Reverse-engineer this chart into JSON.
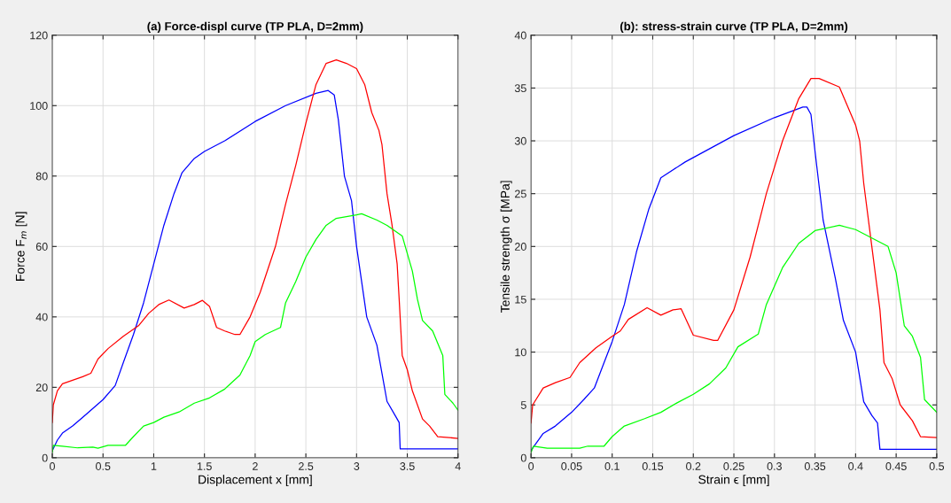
{
  "chart_data": [
    {
      "type": "line",
      "title": "(a) Force-displ curve (TP PLA, D=2mm)",
      "xlabel": "Displacement x [mm]",
      "ylabel": "Force F$_{m}$ [N]",
      "xlim": [
        0,
        4
      ],
      "ylim": [
        0,
        120
      ],
      "xticks": [
        0,
        0.5,
        1,
        1.5,
        2,
        2.5,
        3,
        3.5,
        4
      ],
      "yticks": [
        0,
        20,
        40,
        60,
        80,
        100,
        120
      ],
      "grid": true,
      "series": [
        {
          "color": "#0000ff",
          "x": [
            0,
            0.05,
            0.1,
            0.2,
            0.3,
            0.4,
            0.5,
            0.62,
            0.7,
            0.8,
            0.9,
            1.0,
            1.1,
            1.2,
            1.28,
            1.4,
            1.5,
            1.7,
            2.0,
            2.3,
            2.6,
            2.72,
            2.78,
            2.82,
            2.88,
            2.95,
            3.0,
            3.05,
            3.1,
            3.2,
            3.25,
            3.3,
            3.38,
            3.42,
            3.43,
            4.0
          ],
          "values": [
            2,
            5,
            7,
            9,
            11.5,
            14,
            16.5,
            20.5,
            27,
            35,
            44,
            55,
            66,
            75,
            81,
            85,
            87,
            90,
            95.5,
            100,
            103.5,
            104.3,
            103,
            96,
            80,
            73,
            60,
            50,
            40,
            32,
            24,
            16,
            12,
            10,
            2.5,
            2.5
          ]
        },
        {
          "color": "#ff0000",
          "x": [
            0,
            0.01,
            0.05,
            0.1,
            0.2,
            0.3,
            0.38,
            0.45,
            0.55,
            0.7,
            0.85,
            0.95,
            1.05,
            1.15,
            1.3,
            1.4,
            1.48,
            1.55,
            1.62,
            1.7,
            1.8,
            1.85,
            1.95,
            2.05,
            2.2,
            2.3,
            2.4,
            2.5,
            2.6,
            2.7,
            2.8,
            2.9,
            3.0,
            3.08,
            3.15,
            3.22,
            3.25,
            3.3,
            3.35,
            3.4,
            3.42,
            3.45,
            3.5,
            3.55,
            3.65,
            3.72,
            3.8,
            4.0
          ],
          "values": [
            10,
            15,
            19,
            21,
            22,
            23,
            24,
            28,
            31,
            34.5,
            37.5,
            41,
            43.5,
            44.8,
            42.5,
            43.5,
            44.7,
            43,
            37,
            36,
            35,
            35,
            40,
            47,
            60,
            72,
            83,
            95,
            106,
            112,
            113,
            112,
            110.5,
            106,
            98,
            93,
            89,
            75,
            66,
            55,
            45,
            29,
            25,
            19,
            11,
            9,
            6,
            5.5
          ]
        },
        {
          "color": "#00ff00",
          "x": [
            0,
            0.01,
            0.1,
            0.25,
            0.4,
            0.45,
            0.55,
            0.72,
            0.8,
            0.9,
            1.0,
            1.1,
            1.25,
            1.4,
            1.55,
            1.7,
            1.85,
            1.95,
            2.0,
            2.1,
            2.25,
            2.3,
            2.4,
            2.5,
            2.6,
            2.7,
            2.8,
            2.9,
            3.0,
            3.05,
            3.2,
            3.3,
            3.45,
            3.55,
            3.6,
            3.65,
            3.75,
            3.85,
            3.87,
            3.95,
            4.0
          ],
          "values": [
            1.5,
            3.5,
            3.3,
            2.8,
            3,
            2.7,
            3.5,
            3.5,
            6,
            9,
            10,
            11.5,
            13,
            15.5,
            17,
            19.5,
            23.5,
            29,
            33,
            35,
            37,
            44,
            50,
            57,
            62,
            66,
            68,
            68.5,
            69,
            69.3,
            67.5,
            66,
            63,
            53,
            45,
            39,
            36,
            29,
            18,
            15.5,
            13.5
          ]
        }
      ]
    },
    {
      "type": "line",
      "title": "(b): stress-strain curve (TP PLA, D=2mm)",
      "xlabel": "Strain ϵ [mm]",
      "ylabel": "Tensile strength σ [MPa]",
      "xlim": [
        0,
        0.5
      ],
      "ylim": [
        0,
        40
      ],
      "xticks": [
        0,
        0.05,
        0.1,
        0.15,
        0.2,
        0.25,
        0.3,
        0.35,
        0.4,
        0.45,
        0.5
      ],
      "yticks": [
        0,
        5,
        10,
        15,
        20,
        25,
        30,
        35,
        40
      ],
      "grid": true,
      "series": [
        {
          "color": "#0000ff",
          "x": [
            0,
            0.015,
            0.03,
            0.05,
            0.065,
            0.078,
            0.09,
            0.1,
            0.115,
            0.13,
            0.145,
            0.16,
            0.19,
            0.25,
            0.3,
            0.335,
            0.34,
            0.345,
            0.35,
            0.36,
            0.375,
            0.385,
            0.4,
            0.41,
            0.42,
            0.427,
            0.43,
            0.5
          ],
          "values": [
            0.7,
            2.3,
            3,
            4.3,
            5.5,
            6.6,
            9,
            11,
            14.5,
            19.5,
            23.5,
            26.5,
            28,
            30.5,
            32.2,
            33.2,
            33.2,
            32.5,
            29,
            22.5,
            17,
            13,
            10,
            5.3,
            4,
            3.3,
            0.8,
            0.8
          ]
        },
        {
          "color": "#ff0000",
          "x": [
            0,
            0.002,
            0.015,
            0.03,
            0.048,
            0.06,
            0.08,
            0.1,
            0.11,
            0.12,
            0.143,
            0.16,
            0.175,
            0.185,
            0.2,
            0.225,
            0.23,
            0.25,
            0.27,
            0.29,
            0.31,
            0.33,
            0.345,
            0.355,
            0.38,
            0.4,
            0.405,
            0.41,
            0.42,
            0.43,
            0.435,
            0.445,
            0.455,
            0.47,
            0.48,
            0.5
          ],
          "values": [
            3.3,
            5,
            6.6,
            7.1,
            7.6,
            9,
            10.4,
            11.5,
            12,
            13.1,
            14.2,
            13.5,
            14,
            14.1,
            11.6,
            11.1,
            11.1,
            14,
            19,
            25,
            30,
            34,
            35.9,
            35.9,
            35.1,
            31.5,
            30,
            26,
            20,
            14,
            9,
            7.5,
            5,
            3.5,
            2,
            1.9
          ]
        },
        {
          "color": "#00ff00",
          "x": [
            0,
            0.003,
            0.02,
            0.06,
            0.07,
            0.09,
            0.1,
            0.115,
            0.14,
            0.16,
            0.18,
            0.2,
            0.22,
            0.24,
            0.255,
            0.28,
            0.29,
            0.31,
            0.33,
            0.35,
            0.38,
            0.4,
            0.42,
            0.44,
            0.45,
            0.46,
            0.47,
            0.48,
            0.485,
            0.5
          ],
          "values": [
            0.5,
            1.1,
            0.9,
            0.9,
            1.1,
            1.1,
            2,
            3,
            3.7,
            4.3,
            5.2,
            6,
            7,
            8.5,
            10.5,
            11.7,
            14.5,
            18,
            20.3,
            21.5,
            22,
            21.6,
            20.8,
            20,
            17.5,
            12.5,
            11.5,
            9.5,
            5.5,
            4.3
          ]
        }
      ]
    }
  ]
}
